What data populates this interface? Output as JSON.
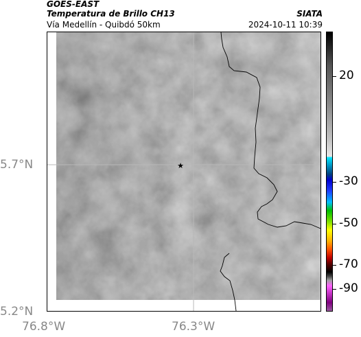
{
  "header": {
    "satellite": "GOES-EAST",
    "product": "Temperatura de Brillo CH13",
    "region": "Vía Medellín - Quibdó 50km",
    "source": "SIATA",
    "timestamp": "2024-10-11 10:39"
  },
  "axes": {
    "lat_labels": [
      "5.7°N",
      "5.2°N"
    ],
    "lon_labels": [
      "76.8°W",
      "76.3°W"
    ]
  },
  "colorbar": {
    "labels": [
      "20",
      "-30",
      "-50",
      "-70",
      "-90"
    ]
  },
  "colors": {
    "cloud_base": "#6a6a6a",
    "frame": "#000000",
    "grid": "#b8b8b8",
    "axis_text": "#888888"
  },
  "markers": [
    {
      "name": "city-marker",
      "symbol": "★"
    }
  ]
}
